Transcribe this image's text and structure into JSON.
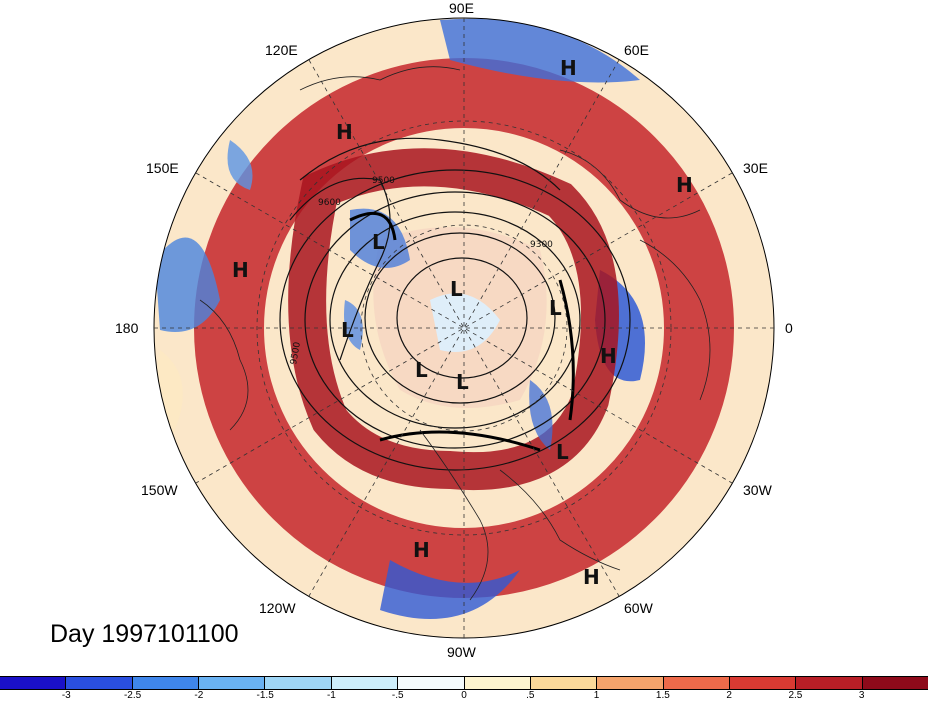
{
  "title": "Day 1997101100",
  "projection": "north-polar-stereographic",
  "longitude_labels": {
    "lon_0": "0",
    "lon_30e": "30E",
    "lon_60e": "60E",
    "lon_90e": "90E",
    "lon_120e": "120E",
    "lon_150e": "150E",
    "lon_180": "180",
    "lon_150w": "150W",
    "lon_120w": "120W",
    "lon_90w": "90W",
    "lon_60w": "60W",
    "lon_30w": "30W"
  },
  "contour_labels": [
    "9600",
    "9500",
    "9300",
    "9500"
  ],
  "pressure_centers": [
    {
      "label": "H"
    },
    {
      "label": "H"
    },
    {
      "label": "H"
    },
    {
      "label": "H"
    },
    {
      "label": "H"
    },
    {
      "label": "H"
    },
    {
      "label": "H"
    },
    {
      "label": "L"
    },
    {
      "label": "L"
    },
    {
      "label": "L"
    },
    {
      "label": "L"
    },
    {
      "label": "L"
    },
    {
      "label": "L"
    },
    {
      "label": "L"
    }
  ],
  "colorbar": {
    "colors": [
      "#1a10c8",
      "#2a4fe0",
      "#3f86ea",
      "#6ab2f2",
      "#9fd6f6",
      "#cdeefb",
      "#f4fbfd",
      "#fdf4cf",
      "#fbd99a",
      "#f5a46c",
      "#ed6a4a",
      "#d93a32",
      "#b81e26",
      "#8e0a1a"
    ],
    "tick_labels": [
      "-3",
      "-2.5",
      "-2",
      "-1.5",
      "-1",
      "-.5",
      "0",
      ".5",
      "1",
      "1.5",
      "2",
      "2.5",
      "3"
    ]
  }
}
